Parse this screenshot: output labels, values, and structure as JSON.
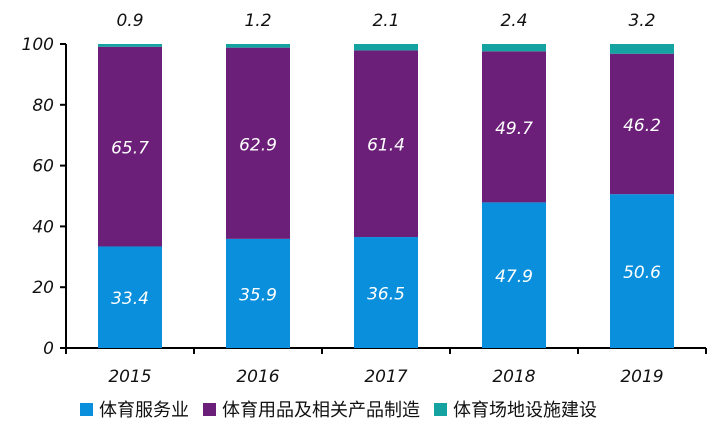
{
  "chart_data": {
    "type": "bar",
    "stacked": true,
    "categories": [
      "2015",
      "2016",
      "2017",
      "2018",
      "2019"
    ],
    "series": [
      {
        "name": "体育服务业",
        "color": "#0a8fdc",
        "values": [
          33.4,
          35.9,
          36.5,
          47.9,
          50.6
        ]
      },
      {
        "name": "体育用品及相关产品制造",
        "color": "#6b1f78",
        "values": [
          65.7,
          62.9,
          61.4,
          49.7,
          46.2
        ]
      },
      {
        "name": "体育场地设施建设",
        "color": "#14a3a0",
        "values": [
          0.9,
          1.2,
          2.1,
          2.4,
          3.2
        ]
      }
    ],
    "ylim": [
      0,
      100
    ],
    "yticks": [
      0,
      20,
      40,
      60,
      80,
      100
    ],
    "grid": false,
    "legend": "bottom",
    "title": "",
    "xlabel": "",
    "ylabel": ""
  }
}
